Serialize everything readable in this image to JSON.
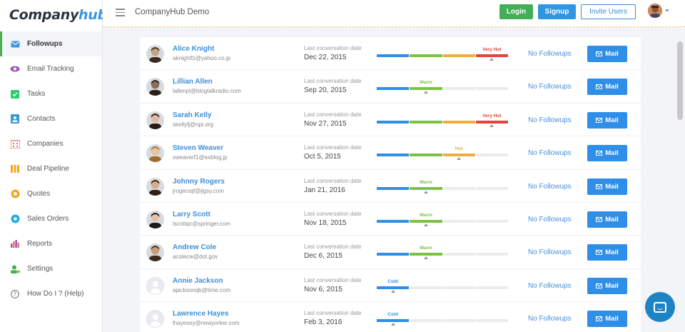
{
  "app": {
    "logo_company": "Company",
    "logo_hub": "hub",
    "title": "CompanyHub Demo"
  },
  "header": {
    "login_label": "Login",
    "signup_label": "Signup",
    "invite_label": "Invite Users"
  },
  "sidebar": {
    "items": [
      {
        "label": "Followups",
        "icon": "envelope-icon",
        "color": "#3d96dc",
        "active": true
      },
      {
        "label": "Email Tracking",
        "icon": "eye-icon",
        "color": "#9b59b6"
      },
      {
        "label": "Tasks",
        "icon": "checkbox-icon",
        "color": "#2ecc71"
      },
      {
        "label": "Contacts",
        "icon": "contact-card-icon",
        "color": "#3498db"
      },
      {
        "label": "Companies",
        "icon": "building-icon",
        "color": "#e57373"
      },
      {
        "label": "Deal Pipeline",
        "icon": "pipeline-icon",
        "color": "#f5a623"
      },
      {
        "label": "Quotes",
        "icon": "gear-coin-icon",
        "color": "#f5a623"
      },
      {
        "label": "Sales Orders",
        "icon": "gear-icon",
        "color": "#27a9e1"
      },
      {
        "label": "Reports",
        "icon": "bar-chart-icon",
        "color": "#9b59b6"
      },
      {
        "label": "Settings",
        "icon": "user-gear-icon",
        "color": "#43ae57"
      },
      {
        "label": "How Do I ? (Help)",
        "icon": "question-icon",
        "color": "#777777"
      }
    ]
  },
  "list": {
    "conv_label": "Last conversation date",
    "followups_label": "No Followups",
    "mail_label": "Mail",
    "heat_colors": {
      "cold": "#2f8ee8",
      "warm": "#7cc242",
      "hot": "#f0ad3d",
      "very_hot": "#e2443c"
    },
    "rows": [
      {
        "name": "Alice Knight",
        "email": "aknightfz@yahoo.co.jp",
        "date": "Dec 22, 2015",
        "heat": "Very Hot",
        "level": 4,
        "avatar": "photo"
      },
      {
        "name": "Lillian Allen",
        "email": "lallenpl@blogtalkradio.com",
        "date": "Sep 20, 2015",
        "heat": "Warm",
        "level": 2,
        "avatar": "photo"
      },
      {
        "name": "Sarah Kelly",
        "email": "skellyfj@npr.org",
        "date": "Nov 27, 2015",
        "heat": "Very Hot",
        "level": 4,
        "avatar": "photo"
      },
      {
        "name": "Steven Weaver",
        "email": "sweaverf1@exblog.jp",
        "date": "Oct 5, 2015",
        "heat": "Hot",
        "level": 3,
        "avatar": "photo"
      },
      {
        "name": "Johnny Rogers",
        "email": "jrogersqf@jigsy.com",
        "date": "Jan 21, 2016",
        "heat": "Warm",
        "level": 2,
        "avatar": "photo"
      },
      {
        "name": "Larry Scott",
        "email": "lscottqc@springer.com",
        "date": "Nov 18, 2015",
        "heat": "Warm",
        "level": 2,
        "avatar": "photo"
      },
      {
        "name": "Andrew Cole",
        "email": "acolecw@dot.gov",
        "date": "Dec 6, 2015",
        "heat": "Warm",
        "level": 2,
        "avatar": "photo"
      },
      {
        "name": "Annie Jackson",
        "email": "ajacksonqb@time.com",
        "date": "Nov 6, 2015",
        "heat": "Cold",
        "level": 1,
        "avatar": "placeholder"
      },
      {
        "name": "Lawrence Hayes",
        "email": "lhayesey@newyorker.com",
        "date": "Feb 3, 2016",
        "heat": "Cold",
        "level": 1,
        "avatar": "placeholder"
      }
    ]
  }
}
